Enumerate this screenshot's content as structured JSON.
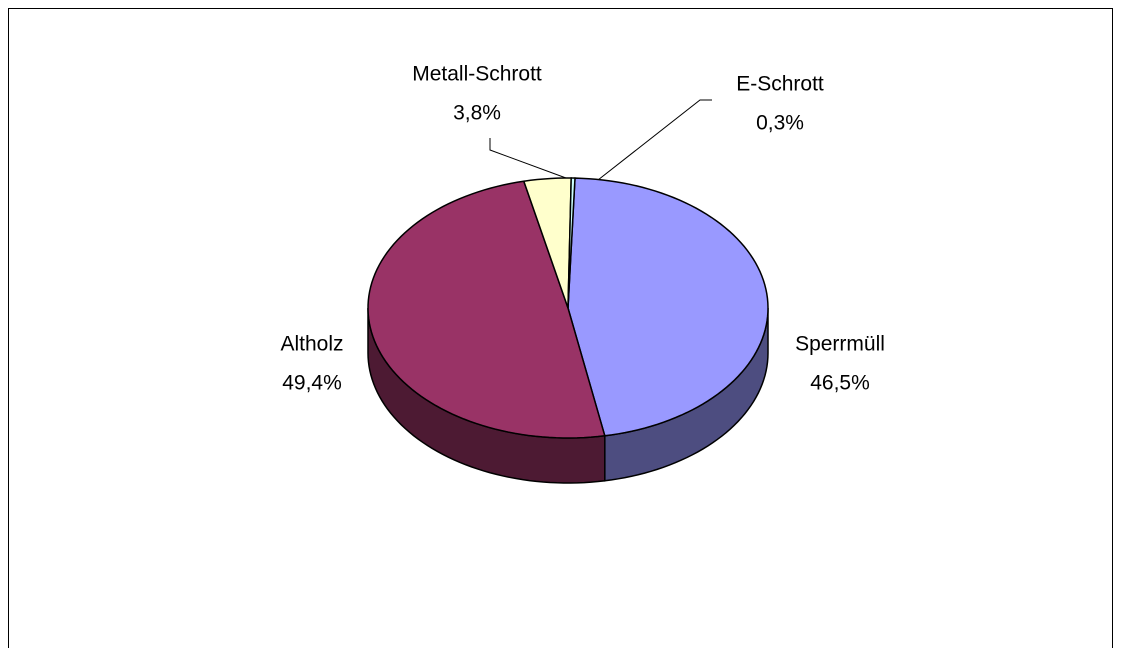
{
  "chart_data": {
    "type": "pie",
    "categories": [
      "Sperrmüll",
      "Altholz",
      "Metall-Schrott",
      "E-Schrott"
    ],
    "values": [
      46.5,
      49.4,
      3.8,
      0.3
    ],
    "value_labels": [
      "46,5%",
      "49,4%",
      "3,8%",
      "0,3%"
    ],
    "colors": [
      "#9999ff",
      "#993366",
      "#ffffcc",
      "#ccffff"
    ]
  }
}
